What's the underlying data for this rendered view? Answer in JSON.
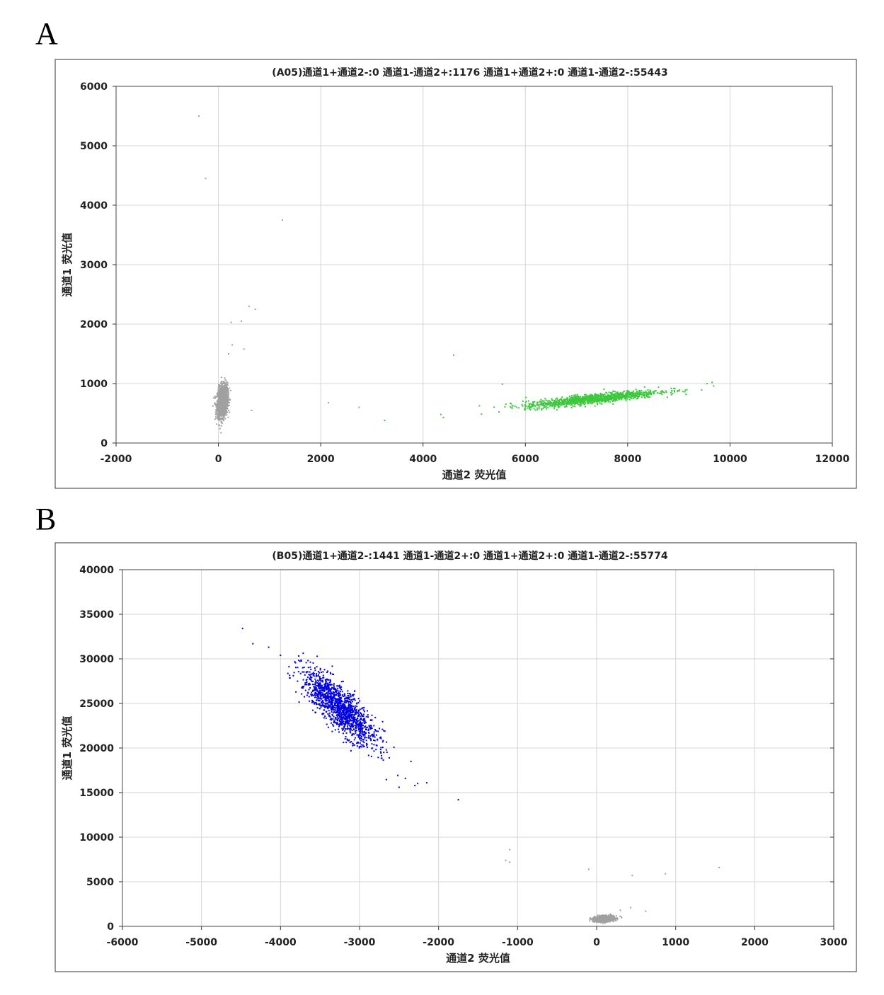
{
  "panels": [
    "A",
    "B"
  ],
  "chart_data": [
    {
      "type": "scatter",
      "title": "(A05)通道1+通道2-:0   通道1-通道2+:1176   通道1+通道2+:0   通道1-通道2-:55443",
      "xlabel": "通道2 荧光值",
      "ylabel": "通道1 荧光值",
      "xlim": [
        -2000,
        12000
      ],
      "ylim": [
        0,
        6000
      ],
      "xticks": [
        -2000,
        0,
        2000,
        4000,
        6000,
        8000,
        10000,
        12000
      ],
      "yticks": [
        0,
        1000,
        2000,
        3000,
        4000,
        5000,
        6000
      ],
      "grid": true,
      "clusters": [
        {
          "label": "通道1-通道2-",
          "color": "#a0a0a0",
          "x_center": 80,
          "x_sd": 50,
          "y_center": 700,
          "y_sd": 130,
          "correlation": 0.2
        },
        {
          "label": "通道1-通道2+",
          "color": "#3cc83c",
          "x_center": 7300,
          "x_sd": 650,
          "y_center": 740,
          "y_sd": 40,
          "slope": 0.09
        }
      ],
      "outliers": [
        {
          "x": -380,
          "y": 5500,
          "color": "#a0a0a0"
        },
        {
          "x": -250,
          "y": 4450,
          "color": "#a0a0a0"
        },
        {
          "x": 1250,
          "y": 3750,
          "color": "#a0a0a0"
        },
        {
          "x": 600,
          "y": 2300,
          "color": "#a0a0a0"
        },
        {
          "x": 720,
          "y": 2250,
          "color": "#a0a0a0"
        },
        {
          "x": 250,
          "y": 2030,
          "color": "#a0a0a0"
        },
        {
          "x": 450,
          "y": 2050,
          "color": "#a0a0a0"
        },
        {
          "x": 270,
          "y": 1650,
          "color": "#a0a0a0"
        },
        {
          "x": 500,
          "y": 1580,
          "color": "#a0a0a0"
        },
        {
          "x": 200,
          "y": 1500,
          "color": "#a0a0a0"
        },
        {
          "x": 650,
          "y": 550,
          "color": "#a0a0a0"
        },
        {
          "x": 2150,
          "y": 680,
          "color": "#a0a0a0"
        },
        {
          "x": 2750,
          "y": 600,
          "color": "#a0a0a0"
        },
        {
          "x": 3250,
          "y": 380,
          "color": "#3cc83c"
        },
        {
          "x": 4600,
          "y": 1480,
          "color": "#3cc83c"
        },
        {
          "x": 4350,
          "y": 480,
          "color": "#3cc83c"
        },
        {
          "x": 4400,
          "y": 430,
          "color": "#3cc83c"
        },
        {
          "x": 5550,
          "y": 990,
          "color": "#3cc83c"
        },
        {
          "x": 9650,
          "y": 1020,
          "color": "#3cc83c"
        },
        {
          "x": 9550,
          "y": 1000,
          "color": "#3cc83c"
        },
        {
          "x": 9680,
          "y": 960,
          "color": "#3cc83c"
        }
      ]
    },
    {
      "type": "scatter",
      "title": "(B05)通道1+通道2-:1441   通道1-通道2+:0   通道1+通道2+:0   通道1-通道2-:55774",
      "xlabel": "通道2 荧光值",
      "ylabel": "通道1 荧光值",
      "xlim": [
        -6000,
        3000
      ],
      "ylim": [
        0,
        40000
      ],
      "xticks": [
        -6000,
        -5000,
        -4000,
        -3000,
        -2000,
        -1000,
        0,
        1000,
        2000,
        3000
      ],
      "yticks": [
        0,
        5000,
        10000,
        15000,
        20000,
        25000,
        30000,
        35000,
        40000
      ],
      "grid": true,
      "clusters": [
        {
          "label": "通道1+通道2-",
          "color": "#0000e0",
          "x_center": -3250,
          "x_sd": 230,
          "y_center": 24500,
          "y_sd": 1200,
          "slope": -7.5
        },
        {
          "label": "通道1-通道2-",
          "color": "#a0a0a0",
          "x_center": 100,
          "x_sd": 60,
          "y_center": 850,
          "y_sd": 150,
          "correlation": 0.2
        }
      ],
      "outliers": [
        {
          "x": -4480,
          "y": 33400,
          "color": "#0000e0"
        },
        {
          "x": -4350,
          "y": 31700,
          "color": "#0000e0"
        },
        {
          "x": -4150,
          "y": 31300,
          "color": "#0000e0"
        },
        {
          "x": -4000,
          "y": 30400,
          "color": "#0000e0"
        },
        {
          "x": -2150,
          "y": 16100,
          "color": "#0000e0"
        },
        {
          "x": -2300,
          "y": 15800,
          "color": "#0000e0"
        },
        {
          "x": -2500,
          "y": 15600,
          "color": "#0000e0"
        },
        {
          "x": -2420,
          "y": 16600,
          "color": "#0000e0"
        },
        {
          "x": -2350,
          "y": 18500,
          "color": "#0000e0"
        },
        {
          "x": -1750,
          "y": 14200,
          "color": "#0000e0"
        },
        {
          "x": -1100,
          "y": 8600,
          "color": "#a0a0a0"
        },
        {
          "x": -1150,
          "y": 7400,
          "color": "#a0a0a0"
        },
        {
          "x": -1100,
          "y": 7200,
          "color": "#a0a0a0"
        },
        {
          "x": -100,
          "y": 6400,
          "color": "#a0a0a0"
        },
        {
          "x": 450,
          "y": 5700,
          "color": "#a0a0a0"
        },
        {
          "x": 870,
          "y": 5900,
          "color": "#a0a0a0"
        },
        {
          "x": 1550,
          "y": 6600,
          "color": "#a0a0a0"
        },
        {
          "x": 620,
          "y": 1700,
          "color": "#a0a0a0"
        },
        {
          "x": 430,
          "y": 2100,
          "color": "#a0a0a0"
        },
        {
          "x": 300,
          "y": 1800,
          "color": "#a0a0a0"
        }
      ]
    }
  ]
}
